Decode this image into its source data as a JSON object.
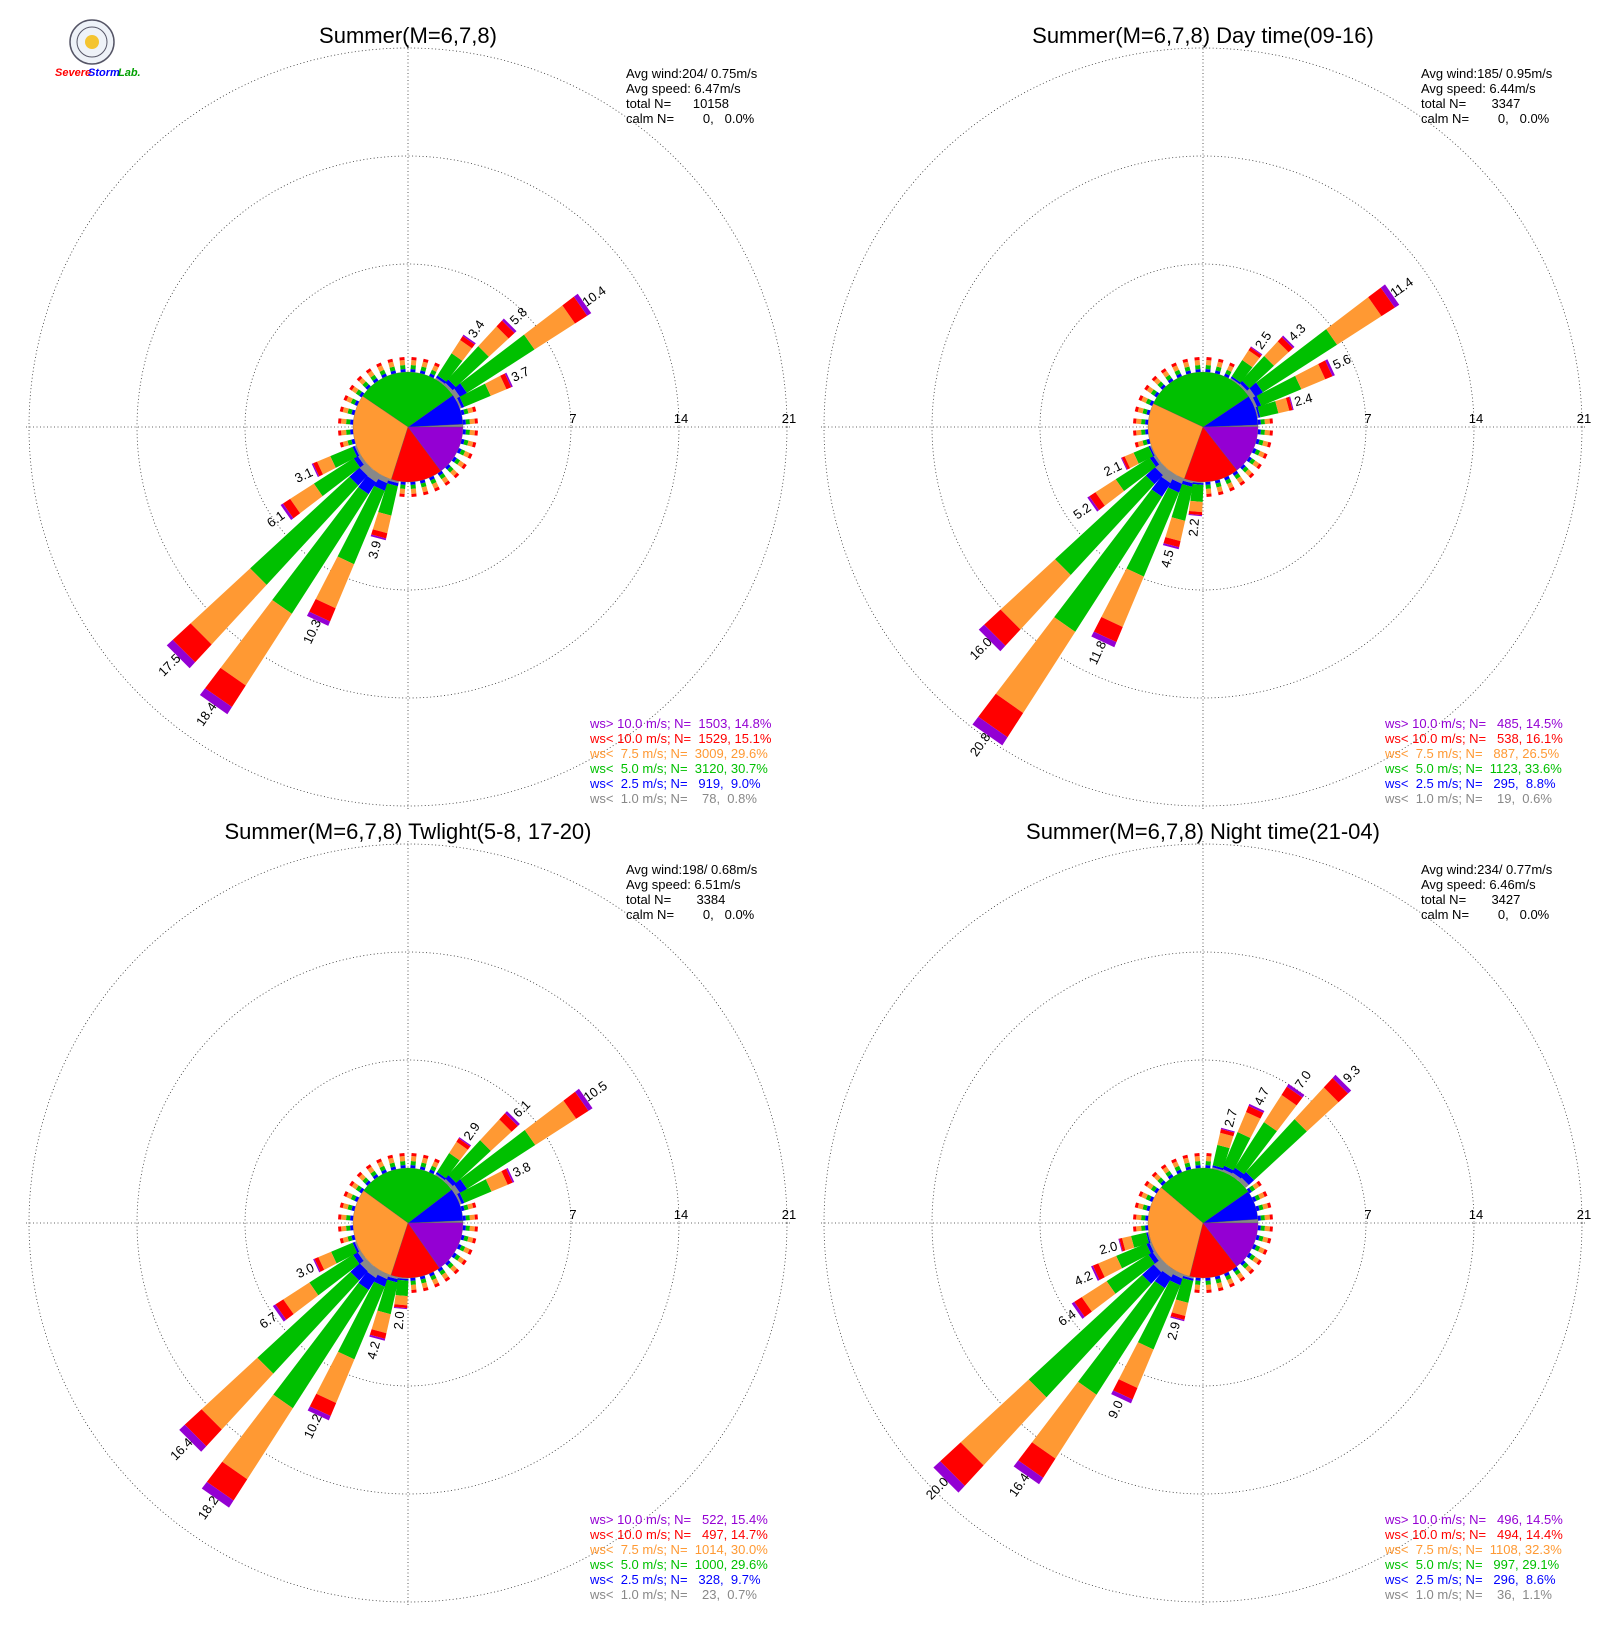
{
  "logo": {
    "text_a": "Severe",
    "text_b": "Storm",
    "text_c": "Lab."
  },
  "colors": {
    "gt10": "#9400d3",
    "lt10": "#ff0000",
    "lt7_5": "#ff9933",
    "lt5": "#00c000",
    "lt2_5": "#0000ff",
    "lt1": "#888888"
  },
  "chart_data": [
    {
      "type": "wind-rose",
      "title": "Summer(M=6,7,8)",
      "stats": [
        "Avg wind:204/ 0.75m/s",
        "Avg speed: 6.47m/s",
        "total N=      10158",
        "calm N=        0,   0.0%"
      ],
      "rings": [
        7,
        14,
        21
      ],
      "pie": [
        {
          "class": "ws< 1.0 m/s",
          "pct": 0.8
        },
        {
          "class": "ws< 2.5 m/s",
          "pct": 9.0
        },
        {
          "class": "ws< 5.0 m/s",
          "pct": 30.7
        },
        {
          "class": "ws< 7.5 m/s",
          "pct": 29.6
        },
        {
          "class": "ws< 10.0 m/s",
          "pct": 15.1
        },
        {
          "class": "ws> 10.0 m/s",
          "pct": 14.8
        }
      ],
      "bars": [
        {
          "dir": 55,
          "total": 10.4
        },
        {
          "dir": 45,
          "total": 5.8
        },
        {
          "dir": 35,
          "total": 3.4
        },
        {
          "dir": 65,
          "total": 3.7
        },
        {
          "dir": 205,
          "total": 10.3
        },
        {
          "dir": 215,
          "total": 18.4
        },
        {
          "dir": 225,
          "total": 17.5
        },
        {
          "dir": 195,
          "total": 3.9
        },
        {
          "dir": 235,
          "total": 6.1
        },
        {
          "dir": 245,
          "total": 3.1
        }
      ],
      "legend": [
        {
          "text": "ws> 10.0 m/s; N=  1503, 14.8%",
          "color": "#9400d3"
        },
        {
          "text": "ws< 10.0 m/s; N=  1529, 15.1%",
          "color": "#ff0000"
        },
        {
          "text": "ws<  7.5 m/s; N=  3009, 29.6%",
          "color": "#ff9933"
        },
        {
          "text": "ws<  5.0 m/s; N=  3120, 30.7%",
          "color": "#00c000"
        },
        {
          "text": "ws<  2.5 m/s; N=   919,  9.0%",
          "color": "#0000ff"
        },
        {
          "text": "ws<  1.0 m/s; N=    78,  0.8%",
          "color": "#888888"
        }
      ]
    },
    {
      "type": "wind-rose",
      "title": "Summer(M=6,7,8) Day time(09-16)",
      "stats": [
        "Avg wind:185/ 0.95m/s",
        "Avg speed: 6.44m/s",
        "total N=       3347",
        "calm N=        0,   0.0%"
      ],
      "rings": [
        7,
        14,
        21
      ],
      "pie": [
        {
          "class": "ws< 1.0 m/s",
          "pct": 0.6
        },
        {
          "class": "ws< 2.5 m/s",
          "pct": 8.8
        },
        {
          "class": "ws< 5.0 m/s",
          "pct": 33.6
        },
        {
          "class": "ws< 7.5 m/s",
          "pct": 26.5
        },
        {
          "class": "ws< 10.0 m/s",
          "pct": 16.1
        },
        {
          "class": "ws> 10.0 m/s",
          "pct": 14.5
        }
      ],
      "bars": [
        {
          "dir": 55,
          "total": 11.4
        },
        {
          "dir": 45,
          "total": 4.3
        },
        {
          "dir": 35,
          "total": 2.5
        },
        {
          "dir": 65,
          "total": 5.6
        },
        {
          "dir": 75,
          "total": 2.4
        },
        {
          "dir": 215,
          "total": 20.8
        },
        {
          "dir": 225,
          "total": 16.0
        },
        {
          "dir": 205,
          "total": 11.8
        },
        {
          "dir": 195,
          "total": 4.5
        },
        {
          "dir": 185,
          "total": 2.2
        },
        {
          "dir": 235,
          "total": 5.2
        },
        {
          "dir": 245,
          "total": 2.1
        }
      ],
      "legend": [
        {
          "text": "ws> 10.0 m/s; N=   485, 14.5%",
          "color": "#9400d3"
        },
        {
          "text": "ws< 10.0 m/s; N=   538, 16.1%",
          "color": "#ff0000"
        },
        {
          "text": "ws<  7.5 m/s; N=   887, 26.5%",
          "color": "#ff9933"
        },
        {
          "text": "ws<  5.0 m/s; N=  1123, 33.6%",
          "color": "#00c000"
        },
        {
          "text": "ws<  2.5 m/s; N=   295,  8.8%",
          "color": "#0000ff"
        },
        {
          "text": "ws<  1.0 m/s; N=    19,  0.6%",
          "color": "#888888"
        }
      ]
    },
    {
      "type": "wind-rose",
      "title": "Summer(M=6,7,8) Twlight(5-8, 17-20)",
      "stats": [
        "Avg wind:198/ 0.68m/s",
        "Avg speed: 6.51m/s",
        "total N=       3384",
        "calm N=        0,   0.0%"
      ],
      "rings": [
        7,
        14,
        21
      ],
      "pie": [
        {
          "class": "ws< 1.0 m/s",
          "pct": 0.7
        },
        {
          "class": "ws< 2.5 m/s",
          "pct": 9.7
        },
        {
          "class": "ws< 5.0 m/s",
          "pct": 29.6
        },
        {
          "class": "ws< 7.5 m/s",
          "pct": 30.0
        },
        {
          "class": "ws< 10.0 m/s",
          "pct": 14.7
        },
        {
          "class": "ws> 10.0 m/s",
          "pct": 15.4
        }
      ],
      "bars": [
        {
          "dir": 55,
          "total": 10.5
        },
        {
          "dir": 45,
          "total": 6.1
        },
        {
          "dir": 35,
          "total": 2.9
        },
        {
          "dir": 65,
          "total": 3.8
        },
        {
          "dir": 215,
          "total": 18.2
        },
        {
          "dir": 225,
          "total": 16.4
        },
        {
          "dir": 205,
          "total": 10.2
        },
        {
          "dir": 195,
          "total": 4.2
        },
        {
          "dir": 185,
          "total": 2.0
        },
        {
          "dir": 235,
          "total": 6.7
        },
        {
          "dir": 245,
          "total": 3.0
        }
      ],
      "legend": [
        {
          "text": "ws> 10.0 m/s; N=   522, 15.4%",
          "color": "#9400d3"
        },
        {
          "text": "ws< 10.0 m/s; N=   497, 14.7%",
          "color": "#ff0000"
        },
        {
          "text": "ws<  7.5 m/s; N=  1014, 30.0%",
          "color": "#ff9933"
        },
        {
          "text": "ws<  5.0 m/s; N=  1000, 29.6%",
          "color": "#00c000"
        },
        {
          "text": "ws<  2.5 m/s; N=   328,  9.7%",
          "color": "#0000ff"
        },
        {
          "text": "ws<  1.0 m/s; N=    23,  0.7%",
          "color": "#888888"
        }
      ]
    },
    {
      "type": "wind-rose",
      "title": "Summer(M=6,7,8) Night time(21-04)",
      "stats": [
        "Avg wind:234/ 0.77m/s",
        "Avg speed: 6.46m/s",
        "total N=       3427",
        "calm N=        0,   0.0%"
      ],
      "rings": [
        7,
        14,
        21
      ],
      "pie": [
        {
          "class": "ws< 1.0 m/s",
          "pct": 1.1
        },
        {
          "class": "ws< 2.5 m/s",
          "pct": 8.6
        },
        {
          "class": "ws< 5.0 m/s",
          "pct": 29.1
        },
        {
          "class": "ws< 7.5 m/s",
          "pct": 32.3
        },
        {
          "class": "ws< 10.0 m/s",
          "pct": 14.4
        },
        {
          "class": "ws> 10.0 m/s",
          "pct": 14.5
        }
      ],
      "bars": [
        {
          "dir": 45,
          "total": 9.3
        },
        {
          "dir": 35,
          "total": 7.0
        },
        {
          "dir": 25,
          "total": 4.7
        },
        {
          "dir": 15,
          "total": 2.7
        },
        {
          "dir": 225,
          "total": 20.0
        },
        {
          "dir": 215,
          "total": 16.4
        },
        {
          "dir": 205,
          "total": 9.0
        },
        {
          "dir": 195,
          "total": 2.9
        },
        {
          "dir": 235,
          "total": 6.4
        },
        {
          "dir": 245,
          "total": 4.2
        },
        {
          "dir": 255,
          "total": 2.0
        }
      ],
      "legend": [
        {
          "text": "ws> 10.0 m/s; N=   496, 14.5%",
          "color": "#9400d3"
        },
        {
          "text": "ws< 10.0 m/s; N=   494, 14.4%",
          "color": "#ff0000"
        },
        {
          "text": "ws<  7.5 m/s; N=  1108, 32.3%",
          "color": "#ff9933"
        },
        {
          "text": "ws<  5.0 m/s; N=   997, 29.1%",
          "color": "#00c000"
        },
        {
          "text": "ws<  2.5 m/s; N=   296,  8.6%",
          "color": "#0000ff"
        },
        {
          "text": "ws<  1.0 m/s; N=    36,  1.1%",
          "color": "#888888"
        }
      ]
    }
  ]
}
